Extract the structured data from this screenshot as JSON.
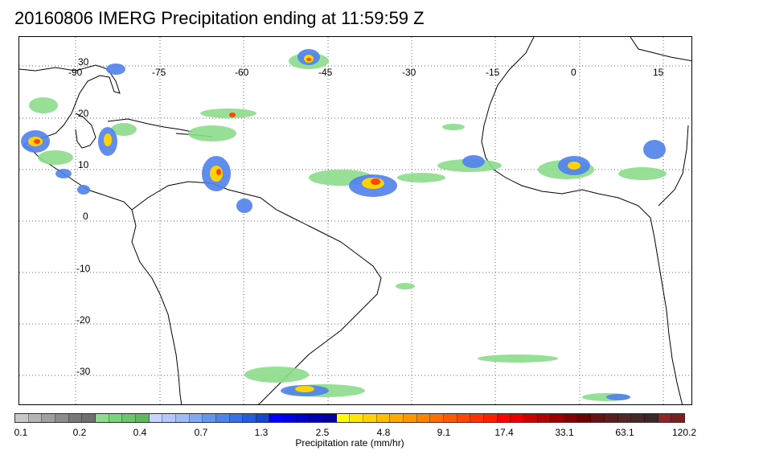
{
  "title": "20160806 IMERG Precipitation ending at 11:59:59 Z",
  "map": {
    "longitude_labels": [
      "-90",
      "-75",
      "-60",
      "-45",
      "-30",
      "-15",
      "0",
      "15"
    ],
    "latitude_labels": [
      "30",
      "20",
      "10",
      "0",
      "-10",
      "-20",
      "-30"
    ],
    "gridlines": "dotted",
    "coastline_color": "#000000"
  },
  "legend": {
    "title": "Precipitation rate (mm/hr)",
    "tick_labels": [
      "0.1",
      "0.2",
      "0.4",
      "0.7",
      "1.3",
      "2.5",
      "4.8",
      "9.1",
      "17.4",
      "33.1",
      "63.1",
      "120.2"
    ],
    "colors": [
      "#c8c8c8",
      "#b4b4b4",
      "#a0a0a0",
      "#8c8c8c",
      "#787878",
      "#6e6e6e",
      "#8cdc8c",
      "#7dd07d",
      "#6ec46e",
      "#60b860",
      "#c8d2ff",
      "#b4c8ff",
      "#a0bef5",
      "#82aaf0",
      "#6496eb",
      "#5082eb",
      "#3c6ee6",
      "#285adc",
      "#1446d2",
      "#0000ff",
      "#0000e6",
      "#0000cd",
      "#0000b4",
      "#00009b",
      "#ffff00",
      "#ffe600",
      "#ffd200",
      "#ffbe00",
      "#ffaa00",
      "#ff9600",
      "#ff8200",
      "#ff6e00",
      "#ff5a00",
      "#ff4600",
      "#ff3200",
      "#ff1e00",
      "#ff0000",
      "#e60000",
      "#cd0000",
      "#b40000",
      "#9b0000",
      "#820000",
      "#6e0000",
      "#641414",
      "#5a1e1e",
      "#502828",
      "#462828",
      "#3c2828",
      "#8c2828",
      "#7a2020"
    ]
  }
}
